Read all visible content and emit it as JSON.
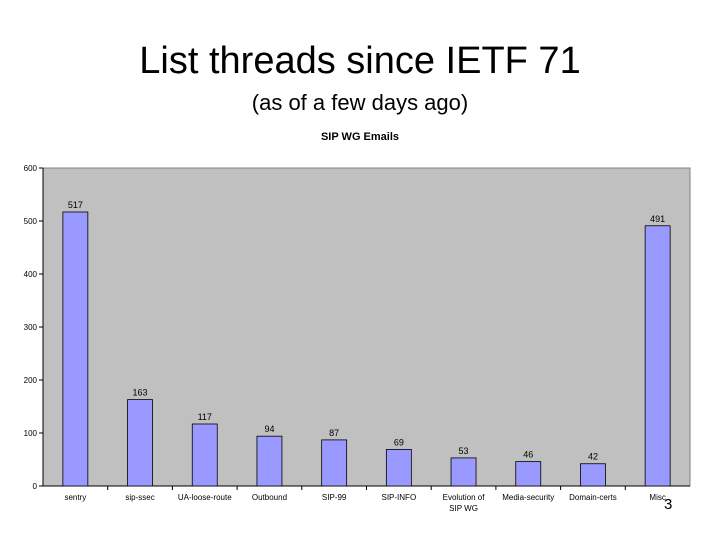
{
  "slide": {
    "title": "List threads since IETF 71",
    "subtitle": "(as of a few days ago)",
    "page_number": "3"
  },
  "chart_data": {
    "type": "bar",
    "title": "SIP WG Emails",
    "xlabel": "",
    "ylabel": "",
    "ylim": [
      0,
      600
    ],
    "yticks": [
      "0",
      "100",
      "200",
      "300",
      "400",
      "500",
      "600"
    ],
    "categories": [
      "sentry",
      "sip-ssec",
      "UA-loose-route",
      "Outbound",
      "SIP-99",
      "SIP-INFO",
      "Evolution of SIP WG",
      "Media-security",
      "Domain-certs",
      "Misc"
    ],
    "values": [
      517,
      163,
      117,
      94,
      87,
      69,
      53,
      46,
      42,
      491
    ],
    "data_labels": [
      "517",
      "163",
      "117",
      "94",
      "87",
      "69",
      "53",
      "46",
      "42",
      "491"
    ],
    "grid": false,
    "legend": "none",
    "colors": {
      "plot_background": "#c0c0c0",
      "bar_fill": "#9999ff",
      "bar_stroke": "#000000"
    }
  }
}
